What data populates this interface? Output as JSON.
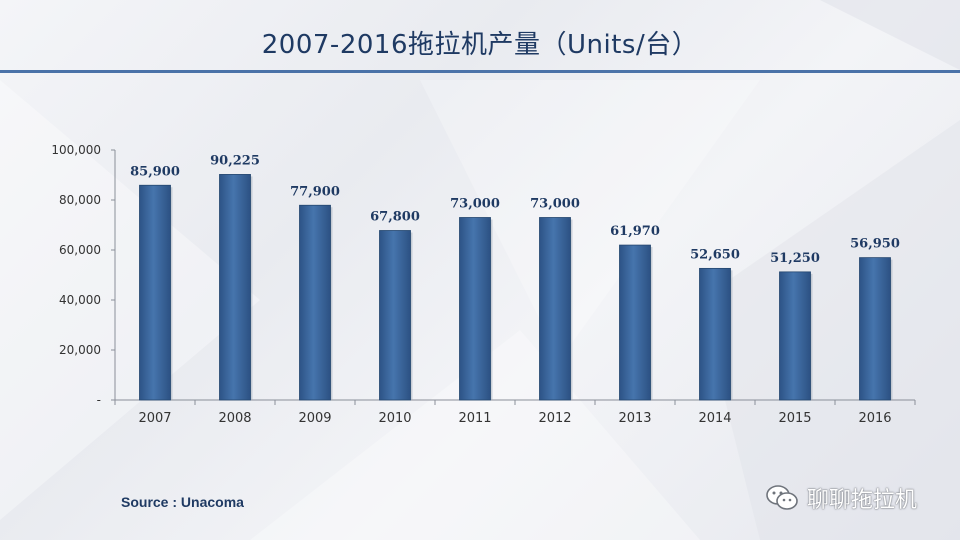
{
  "title": "2007-2016拖拉机产量（Units/台）",
  "source": "Source : Unacoma",
  "watermark": {
    "text": "聊聊拖拉机",
    "icon": "wechat-icon"
  },
  "colors": {
    "bar": "#3b679d",
    "title": "#1f3a63",
    "rule": "#4a72a8",
    "label": "#1f3a63"
  },
  "chart_data": {
    "type": "bar",
    "title": "2007-2016拖拉机产量（Units/台）",
    "categories": [
      "2007",
      "2008",
      "2009",
      "2010",
      "2011",
      "2012",
      "2013",
      "2014",
      "2015",
      "2016"
    ],
    "values": [
      85900,
      90225,
      77900,
      67800,
      73000,
      73000,
      61970,
      52650,
      51250,
      56950
    ],
    "value_labels": [
      "85,900",
      "90,225",
      "77,900",
      "67,800",
      "73,000",
      "73,000",
      "61,970",
      "52,650",
      "51,250",
      "56,950"
    ],
    "yticks": [
      "-",
      "20,000",
      "40,000",
      "60,000",
      "80,000",
      "100,000"
    ],
    "ylim": [
      0,
      100000
    ],
    "grid": false,
    "legend": "none"
  }
}
